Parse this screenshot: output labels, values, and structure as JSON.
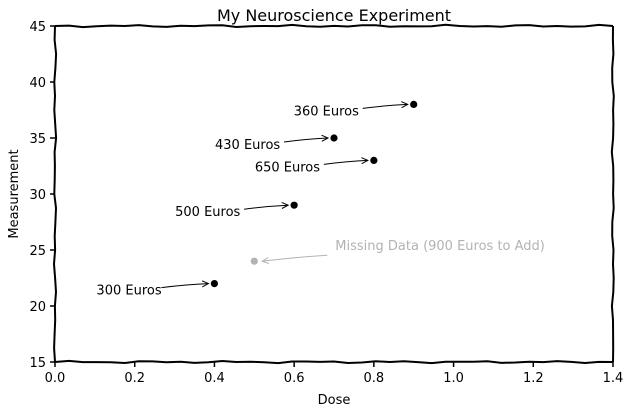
{
  "chart_data": {
    "type": "scatter",
    "title": "My Neuroscience Experiment",
    "xlabel": "Dose",
    "ylabel": "Measurement",
    "xlim": [
      0.0,
      1.4
    ],
    "ylim": [
      15,
      45
    ],
    "xticks": [
      0.0,
      0.2,
      0.4,
      0.6,
      0.8,
      1.0,
      1.2,
      1.4
    ],
    "xtick_labels": [
      "0.0",
      "0.2",
      "0.4",
      "0.6",
      "0.8",
      "1.0",
      "1.2",
      "1.4"
    ],
    "yticks": [
      15,
      20,
      25,
      30,
      35,
      40,
      45
    ],
    "ytick_labels": [
      "15",
      "20",
      "25",
      "30",
      "35",
      "40",
      "45"
    ],
    "grid": false,
    "style": "xkcd",
    "points": [
      {
        "x": 0.4,
        "y": 22,
        "label": "300 Euros",
        "color": "#000000",
        "missing": false
      },
      {
        "x": 0.6,
        "y": 29,
        "label": "500 Euros",
        "color": "#000000",
        "missing": false
      },
      {
        "x": 0.7,
        "y": 35,
        "label": "430 Euros",
        "color": "#000000",
        "missing": false
      },
      {
        "x": 0.8,
        "y": 33,
        "label": "650 Euros",
        "color": "#000000",
        "missing": false
      },
      {
        "x": 0.9,
        "y": 38,
        "label": "360 Euros",
        "color": "#000000",
        "missing": false
      },
      {
        "x": 0.5,
        "y": 24,
        "label": "Missing Data (900 Euros to Add)",
        "color": "#b3b3b3",
        "missing": true
      }
    ]
  }
}
